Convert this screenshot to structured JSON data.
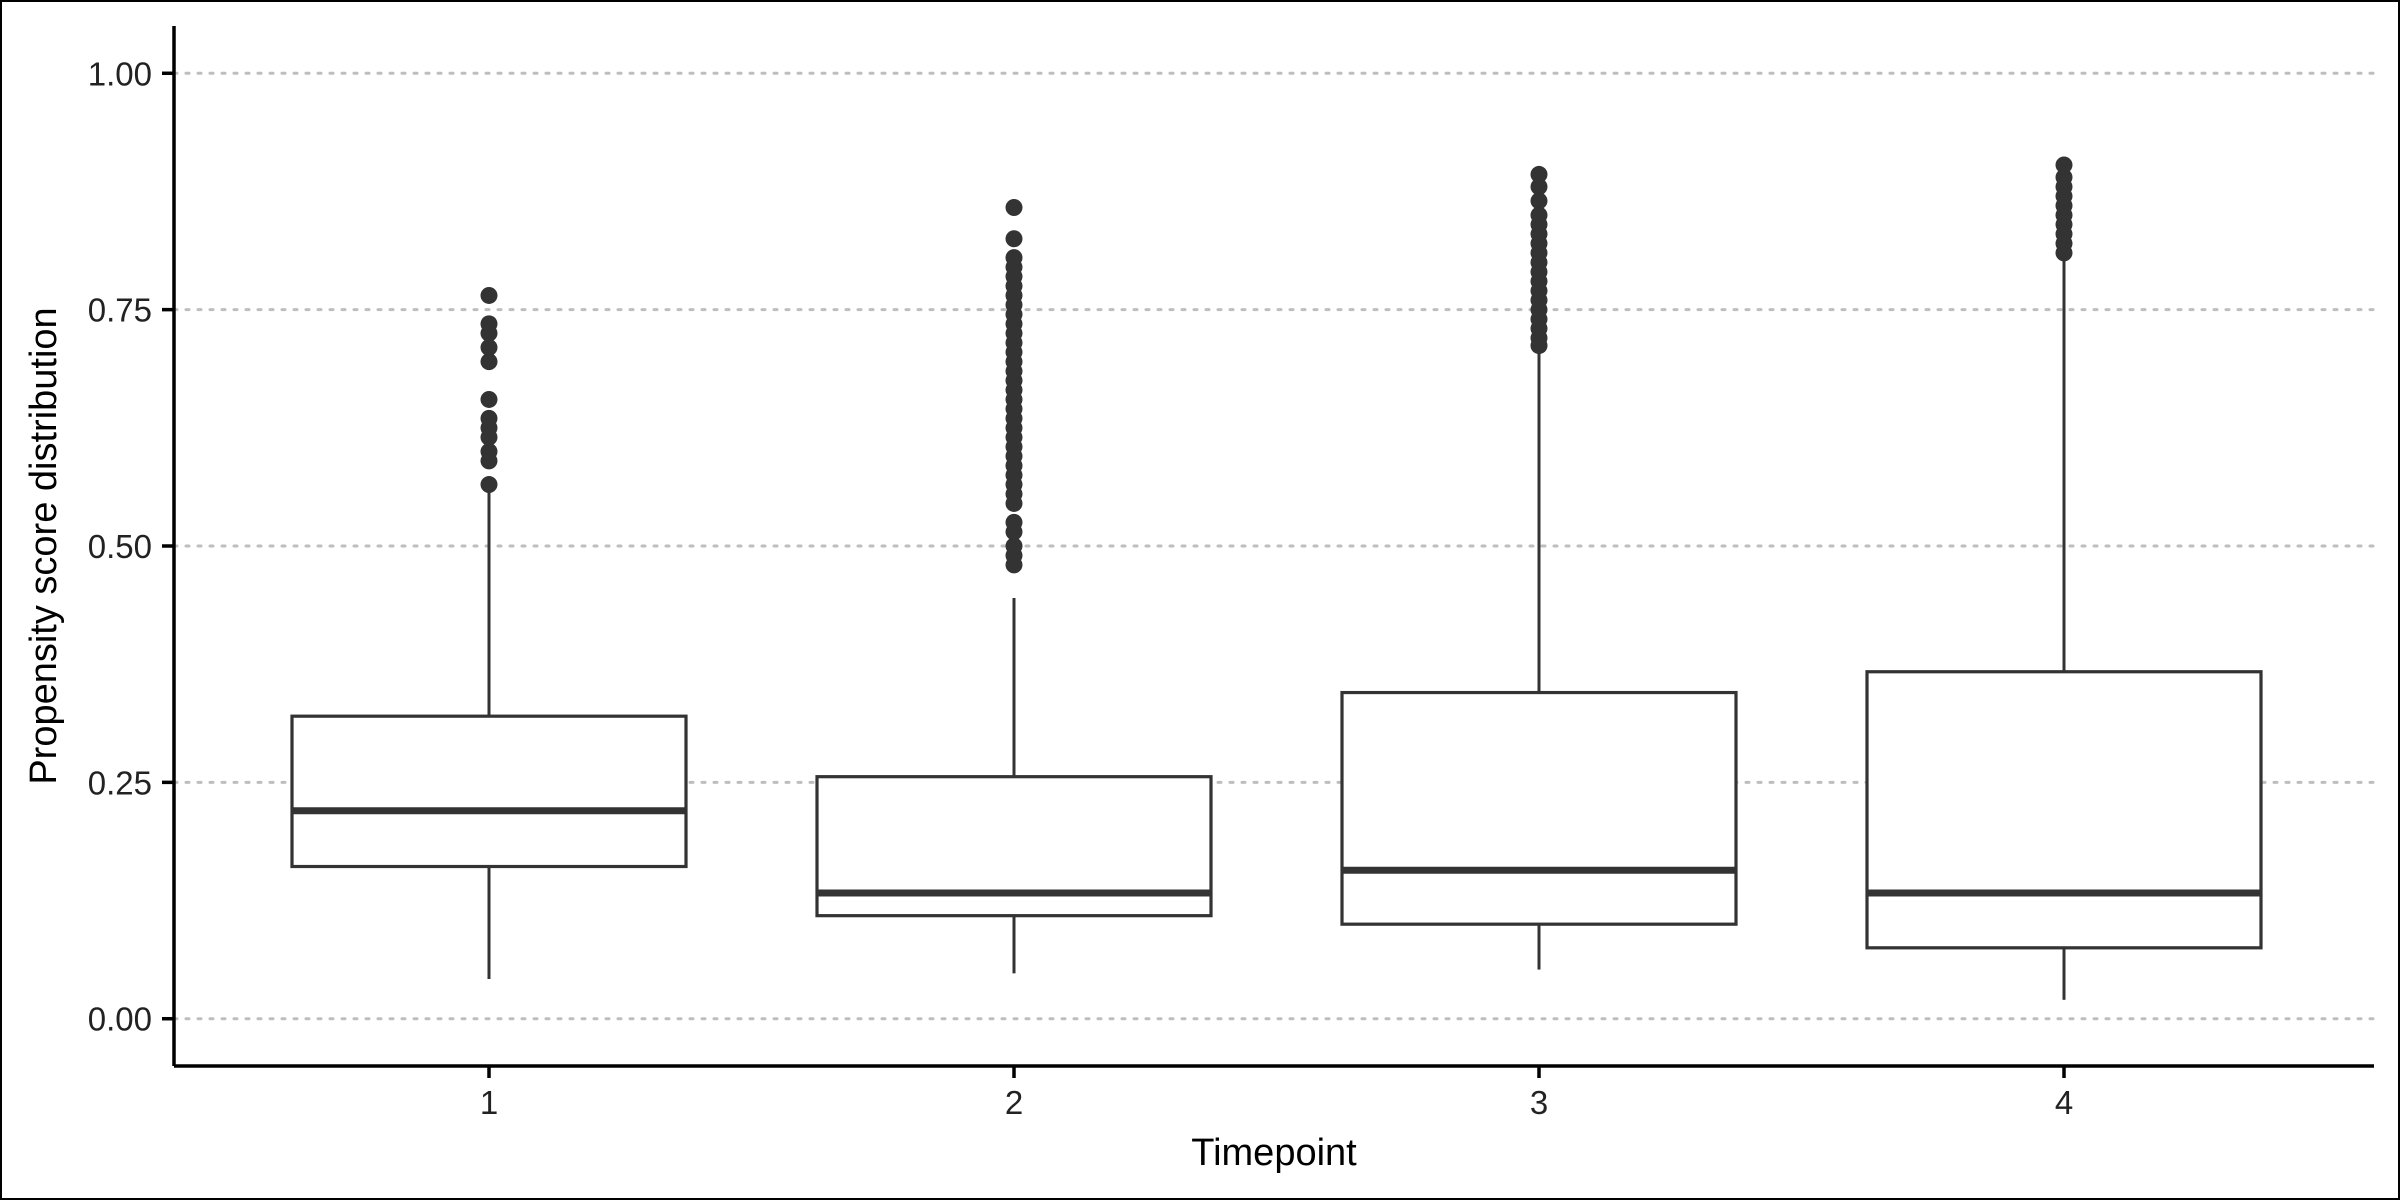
{
  "chart_data": {
    "type": "boxplot",
    "title": "",
    "xlabel": "Timepoint",
    "ylabel": "Propensity score distribution",
    "ylim": [
      -0.05,
      1.05
    ],
    "grid": "horizontal dotted at major y ticks",
    "y_ticks": [
      0.0,
      0.25,
      0.5,
      0.75,
      1.0
    ],
    "y_tick_labels": [
      "0.00",
      "0.25",
      "0.50",
      "0.75",
      "1.00"
    ],
    "categories": [
      "1",
      "2",
      "3",
      "4"
    ],
    "boxes": [
      {
        "category": "1",
        "lower_whisker": 0.042,
        "q1": 0.161,
        "median": 0.22,
        "q3": 0.32,
        "upper_whisker": 0.56,
        "outliers": [
          0.565,
          0.59,
          0.6,
          0.615,
          0.625,
          0.635,
          0.655,
          0.695,
          0.71,
          0.725,
          0.735,
          0.765
        ]
      },
      {
        "category": "2",
        "lower_whisker": 0.048,
        "q1": 0.109,
        "median": 0.133,
        "q3": 0.256,
        "upper_whisker": 0.445,
        "outliers": [
          0.48,
          0.49,
          0.5,
          0.515,
          0.525,
          0.545,
          0.555,
          0.565,
          0.575,
          0.585,
          0.595,
          0.605,
          0.615,
          0.625,
          0.635,
          0.645,
          0.655,
          0.665,
          0.675,
          0.685,
          0.695,
          0.705,
          0.715,
          0.725,
          0.735,
          0.745,
          0.755,
          0.765,
          0.775,
          0.785,
          0.795,
          0.805,
          0.825,
          0.858
        ]
      },
      {
        "category": "3",
        "lower_whisker": 0.052,
        "q1": 0.1,
        "median": 0.157,
        "q3": 0.345,
        "upper_whisker": 0.71,
        "outliers": [
          0.712,
          0.72,
          0.73,
          0.74,
          0.75,
          0.76,
          0.77,
          0.78,
          0.79,
          0.8,
          0.81,
          0.82,
          0.83,
          0.84,
          0.85,
          0.865,
          0.88,
          0.893
        ]
      },
      {
        "category": "4",
        "lower_whisker": 0.02,
        "q1": 0.075,
        "median": 0.133,
        "q3": 0.367,
        "upper_whisker": 0.805,
        "outliers": [
          0.81,
          0.82,
          0.83,
          0.84,
          0.85,
          0.86,
          0.87,
          0.88,
          0.89,
          0.903
        ]
      }
    ],
    "colors": {
      "box_stroke": "#333333",
      "outlier_fill": "#333333",
      "grid": "#bebebe",
      "axis": "#000000",
      "box_fill": "#ffffff"
    }
  }
}
